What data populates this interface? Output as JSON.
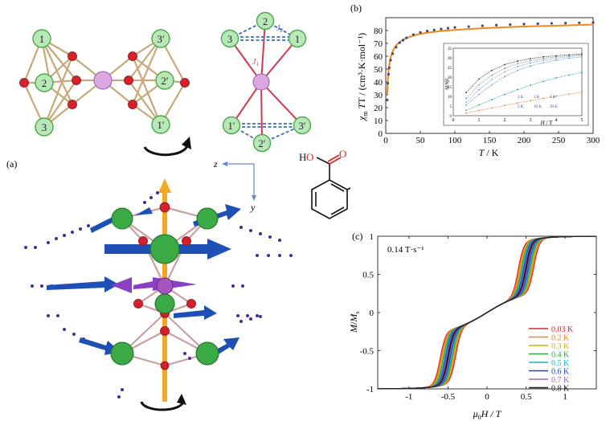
{
  "panels": {
    "a": {
      "label": "(a)",
      "structure_left": {
        "atom_labels": [
          "1",
          "2",
          "3",
          "3′",
          "2′",
          "1′"
        ]
      },
      "structure_right": {
        "atom_labels": [
          "2",
          "3",
          "1",
          "1′",
          "2′",
          "3′"
        ],
        "j1_label": "J",
        "j1_sub": "1",
        "j2_label": "J",
        "j2_sub": "2"
      },
      "axis_z": "z",
      "axis_y": "y",
      "ligand": {
        "h_label": "H",
        "o1_label": "O",
        "o2_label": "O"
      },
      "colors": {
        "dy": "#3aaa45",
        "center": "#b46ac4",
        "oxygen": "#d8202a",
        "spin_arrow": "#1d4fb4",
        "center_arrow": "#8a3fc4",
        "axis": "#f5a623",
        "bond": "#c8a878"
      }
    },
    "b": {
      "label": "(b)",
      "ylabel_main": "χ",
      "ylabel_sub": "m",
      "ylabel_rest": "T / (cm³·K·mol⁻¹)",
      "xlabel_main": "T",
      "xlabel_rest": " / K",
      "inset": {
        "ylabel": "M/Nβ",
        "xlabel_main": "H",
        "xlabel_rest": " / T",
        "legend_row1": [
          "2 K",
          "3 K",
          "4 K"
        ],
        "legend_row2": [
          "5 K",
          "10 K",
          "20 K"
        ]
      }
    },
    "c": {
      "label": "(c)",
      "sweep_rate": "0.14 T·s⁻¹",
      "ylabel_main": "M",
      "ylabel_sep": "/",
      "ylabel_M": "M",
      "ylabel_sub": "s",
      "xlabel_mu": "μ",
      "xlabel_sub": "0",
      "xlabel_rest": "H / T"
    }
  },
  "chart_data": [
    {
      "type": "scatter",
      "id": "chiT-vs-T",
      "xlim": [
        0,
        300
      ],
      "ylim": [
        0,
        90
      ],
      "xticks": [
        0,
        50,
        100,
        150,
        200,
        250,
        300
      ],
      "yticks": [
        0,
        10,
        20,
        30,
        40,
        50,
        60,
        70,
        80
      ],
      "series": [
        {
          "kind": "points",
          "x": [
            2,
            3,
            4,
            5,
            7,
            10,
            15,
            20,
            25,
            30,
            40,
            50,
            60,
            70,
            80,
            90,
            100,
            120,
            140,
            160,
            180,
            200,
            220,
            240,
            260,
            280,
            300
          ],
          "y": [
            26,
            39,
            46,
            51,
            57,
            62,
            67,
            70.5,
            72.5,
            74.3,
            76.8,
            78.5,
            79.6,
            80.5,
            81.2,
            81.8,
            82.4,
            83.1,
            83.7,
            84.2,
            84.6,
            85,
            85.3,
            85.6,
            85.8,
            86,
            86.3
          ],
          "color": "#3a4a7a"
        },
        {
          "kind": "fit",
          "x": [
            2,
            3,
            4,
            5,
            7,
            10,
            15,
            20,
            25,
            30,
            40,
            50,
            60,
            70,
            80,
            90,
            100,
            120,
            140,
            160,
            180,
            200,
            220,
            240,
            260,
            280,
            300
          ],
          "y": [
            30,
            41,
            48,
            53,
            59,
            64,
            68.5,
            71,
            72.8,
            74.2,
            76.1,
            77.4,
            78.3,
            79,
            79.6,
            80.1,
            80.5,
            81.2,
            81.8,
            82.3,
            82.7,
            83.1,
            83.4,
            83.7,
            84,
            84.3,
            84.6
          ],
          "color": "#f08a1c"
        }
      ]
    },
    {
      "type": "scatter",
      "id": "inset-M-vs-H",
      "xlim": [
        0,
        5
      ],
      "ylim": [
        0,
        35
      ],
      "xticks": [
        0,
        1,
        2,
        3,
        4,
        5
      ],
      "yticks": [
        0,
        5,
        10,
        15,
        20,
        25,
        30,
        35
      ],
      "series": [
        {
          "name": "2 K",
          "color": "#333333",
          "x": [
            0.5,
            1,
            1.5,
            2,
            2.5,
            3,
            3.5,
            4,
            4.5,
            5
          ],
          "y": [
            12,
            19,
            23.5,
            26.5,
            28.3,
            29.6,
            30.5,
            31.1,
            31.6,
            32
          ]
        },
        {
          "name": "3 K",
          "color": "#888888",
          "x": [
            0.5,
            1,
            1.5,
            2,
            2.5,
            3,
            3.5,
            4,
            4.5,
            5
          ],
          "y": [
            9,
            16,
            21,
            24.6,
            27,
            28.6,
            29.7,
            30.5,
            31.1,
            31.6
          ]
        },
        {
          "name": "4 K",
          "color": "#7aa0d8",
          "x": [
            0.5,
            1,
            1.5,
            2,
            2.5,
            3,
            3.5,
            4,
            4.5,
            5
          ],
          "y": [
            7,
            13.5,
            18.8,
            22.7,
            25.5,
            27.4,
            28.8,
            29.8,
            30.6,
            31.2
          ]
        },
        {
          "name": "5 K",
          "color": "#6a8fc8",
          "x": [
            0.5,
            1,
            1.5,
            2,
            2.5,
            3,
            3.5,
            4,
            4.5,
            5
          ],
          "y": [
            5.5,
            11,
            16,
            20.3,
            23.5,
            25.8,
            27.5,
            28.8,
            29.8,
            30.5
          ]
        },
        {
          "name": "10 K",
          "color": "#20a0a8",
          "x": [
            0.5,
            1,
            1.5,
            2,
            2.5,
            3,
            3.5,
            4,
            4.5,
            5
          ],
          "y": [
            2.8,
            5.6,
            8.4,
            11,
            13.5,
            15.8,
            17.8,
            19.6,
            21.1,
            22.4
          ]
        },
        {
          "name": "20 K",
          "color": "#e08040",
          "x": [
            0.5,
            1,
            1.5,
            2,
            2.5,
            3,
            3.5,
            4,
            4.5,
            5
          ],
          "y": [
            1.3,
            2.7,
            4,
            5.3,
            6.6,
            7.8,
            9,
            10.1,
            11.2,
            12.2
          ]
        }
      ]
    },
    {
      "type": "line",
      "id": "hysteresis",
      "xlim": [
        -1.4,
        1.4
      ],
      "ylim": [
        -1,
        1
      ],
      "xticks": [
        -1,
        -0.5,
        0,
        0.5,
        1
      ],
      "yticks": [
        -1,
        -0.5,
        0,
        0.5,
        1
      ],
      "legend_position": "bottom-right",
      "series": [
        {
          "name": "0.03 K",
          "color": "#e0202a",
          "loop_gap": 0.1
        },
        {
          "name": "0.2 K",
          "color": "#f08020",
          "loop_gap": 0.086
        },
        {
          "name": "0.3 K",
          "color": "#c8b800",
          "loop_gap": 0.072
        },
        {
          "name": "0.4 K",
          "color": "#30a040",
          "loop_gap": 0.058
        },
        {
          "name": "0.5 K",
          "color": "#20b0d0",
          "loop_gap": 0.044
        },
        {
          "name": "0.6 K",
          "color": "#2040c0",
          "loop_gap": 0.03
        },
        {
          "name": "0.7 K",
          "color": "#a060c0",
          "loop_gap": 0.017
        },
        {
          "name": "0.8 K",
          "color": "#222222",
          "loop_gap": 0.005
        }
      ]
    }
  ]
}
